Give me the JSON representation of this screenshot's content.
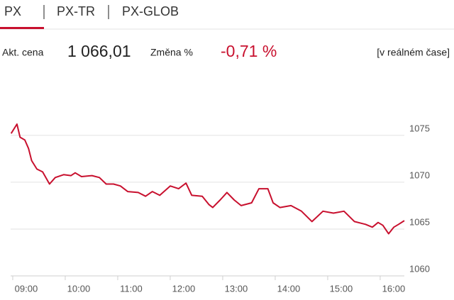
{
  "tabs": [
    "PX",
    "PX-TR",
    "PX-GLOB"
  ],
  "quote": {
    "price_label": "Akt. cena",
    "price": "1 066,01",
    "change_label": "Změna %",
    "change": "-0,71 %",
    "note": "[v reálném čase]"
  },
  "chart_data": {
    "type": "line",
    "x": [
      8.97,
      9.08,
      9.14,
      9.23,
      9.3,
      9.36,
      9.46,
      9.57,
      9.7,
      9.81,
      9.97,
      10.11,
      10.19,
      10.31,
      10.51,
      10.65,
      10.78,
      10.92,
      11.05,
      11.19,
      11.39,
      11.53,
      11.66,
      11.8,
      12.0,
      12.16,
      12.3,
      12.41,
      12.61,
      12.74,
      12.81,
      12.95,
      13.08,
      13.22,
      13.35,
      13.55,
      13.69,
      13.86,
      13.96,
      14.09,
      14.3,
      14.5,
      14.7,
      14.91,
      15.11,
      15.31,
      15.51,
      15.72,
      15.85,
      15.96,
      16.05,
      16.16,
      16.26,
      16.35,
      16.46
    ],
    "series": [
      {
        "color": "#c8102e",
        "values": [
          1075.2,
          1076.2,
          1074.8,
          1074.5,
          1073.6,
          1072.3,
          1071.4,
          1071.1,
          1069.8,
          1070.5,
          1070.8,
          1070.7,
          1071.0,
          1070.6,
          1070.7,
          1070.5,
          1069.8,
          1069.8,
          1069.6,
          1069.0,
          1068.9,
          1068.5,
          1069.0,
          1068.6,
          1069.6,
          1069.3,
          1069.9,
          1068.6,
          1068.5,
          1067.6,
          1067.3,
          1068.1,
          1068.9,
          1068.1,
          1067.5,
          1067.8,
          1069.3,
          1069.3,
          1067.8,
          1067.3,
          1067.5,
          1066.9,
          1065.8,
          1066.9,
          1066.7,
          1066.9,
          1065.8,
          1065.5,
          1065.2,
          1065.7,
          1065.4,
          1064.5,
          1065.2,
          1065.5,
          1065.9
        ]
      }
    ],
    "xlim": [
      8.96,
      16.46
    ],
    "xticks": [
      {
        "value": 9,
        "label": "09:00"
      },
      {
        "value": 10,
        "label": "10:00"
      },
      {
        "value": 11,
        "label": "11:00"
      },
      {
        "value": 12,
        "label": "12:00"
      },
      {
        "value": 13,
        "label": "13:00"
      },
      {
        "value": 14,
        "label": "14:00"
      },
      {
        "value": 15,
        "label": "15:00"
      },
      {
        "value": 16,
        "label": "16:00"
      }
    ],
    "ylim": [
      1060,
      1079
    ],
    "yticks": [
      1060,
      1065,
      1070,
      1075
    ],
    "grid": true
  }
}
